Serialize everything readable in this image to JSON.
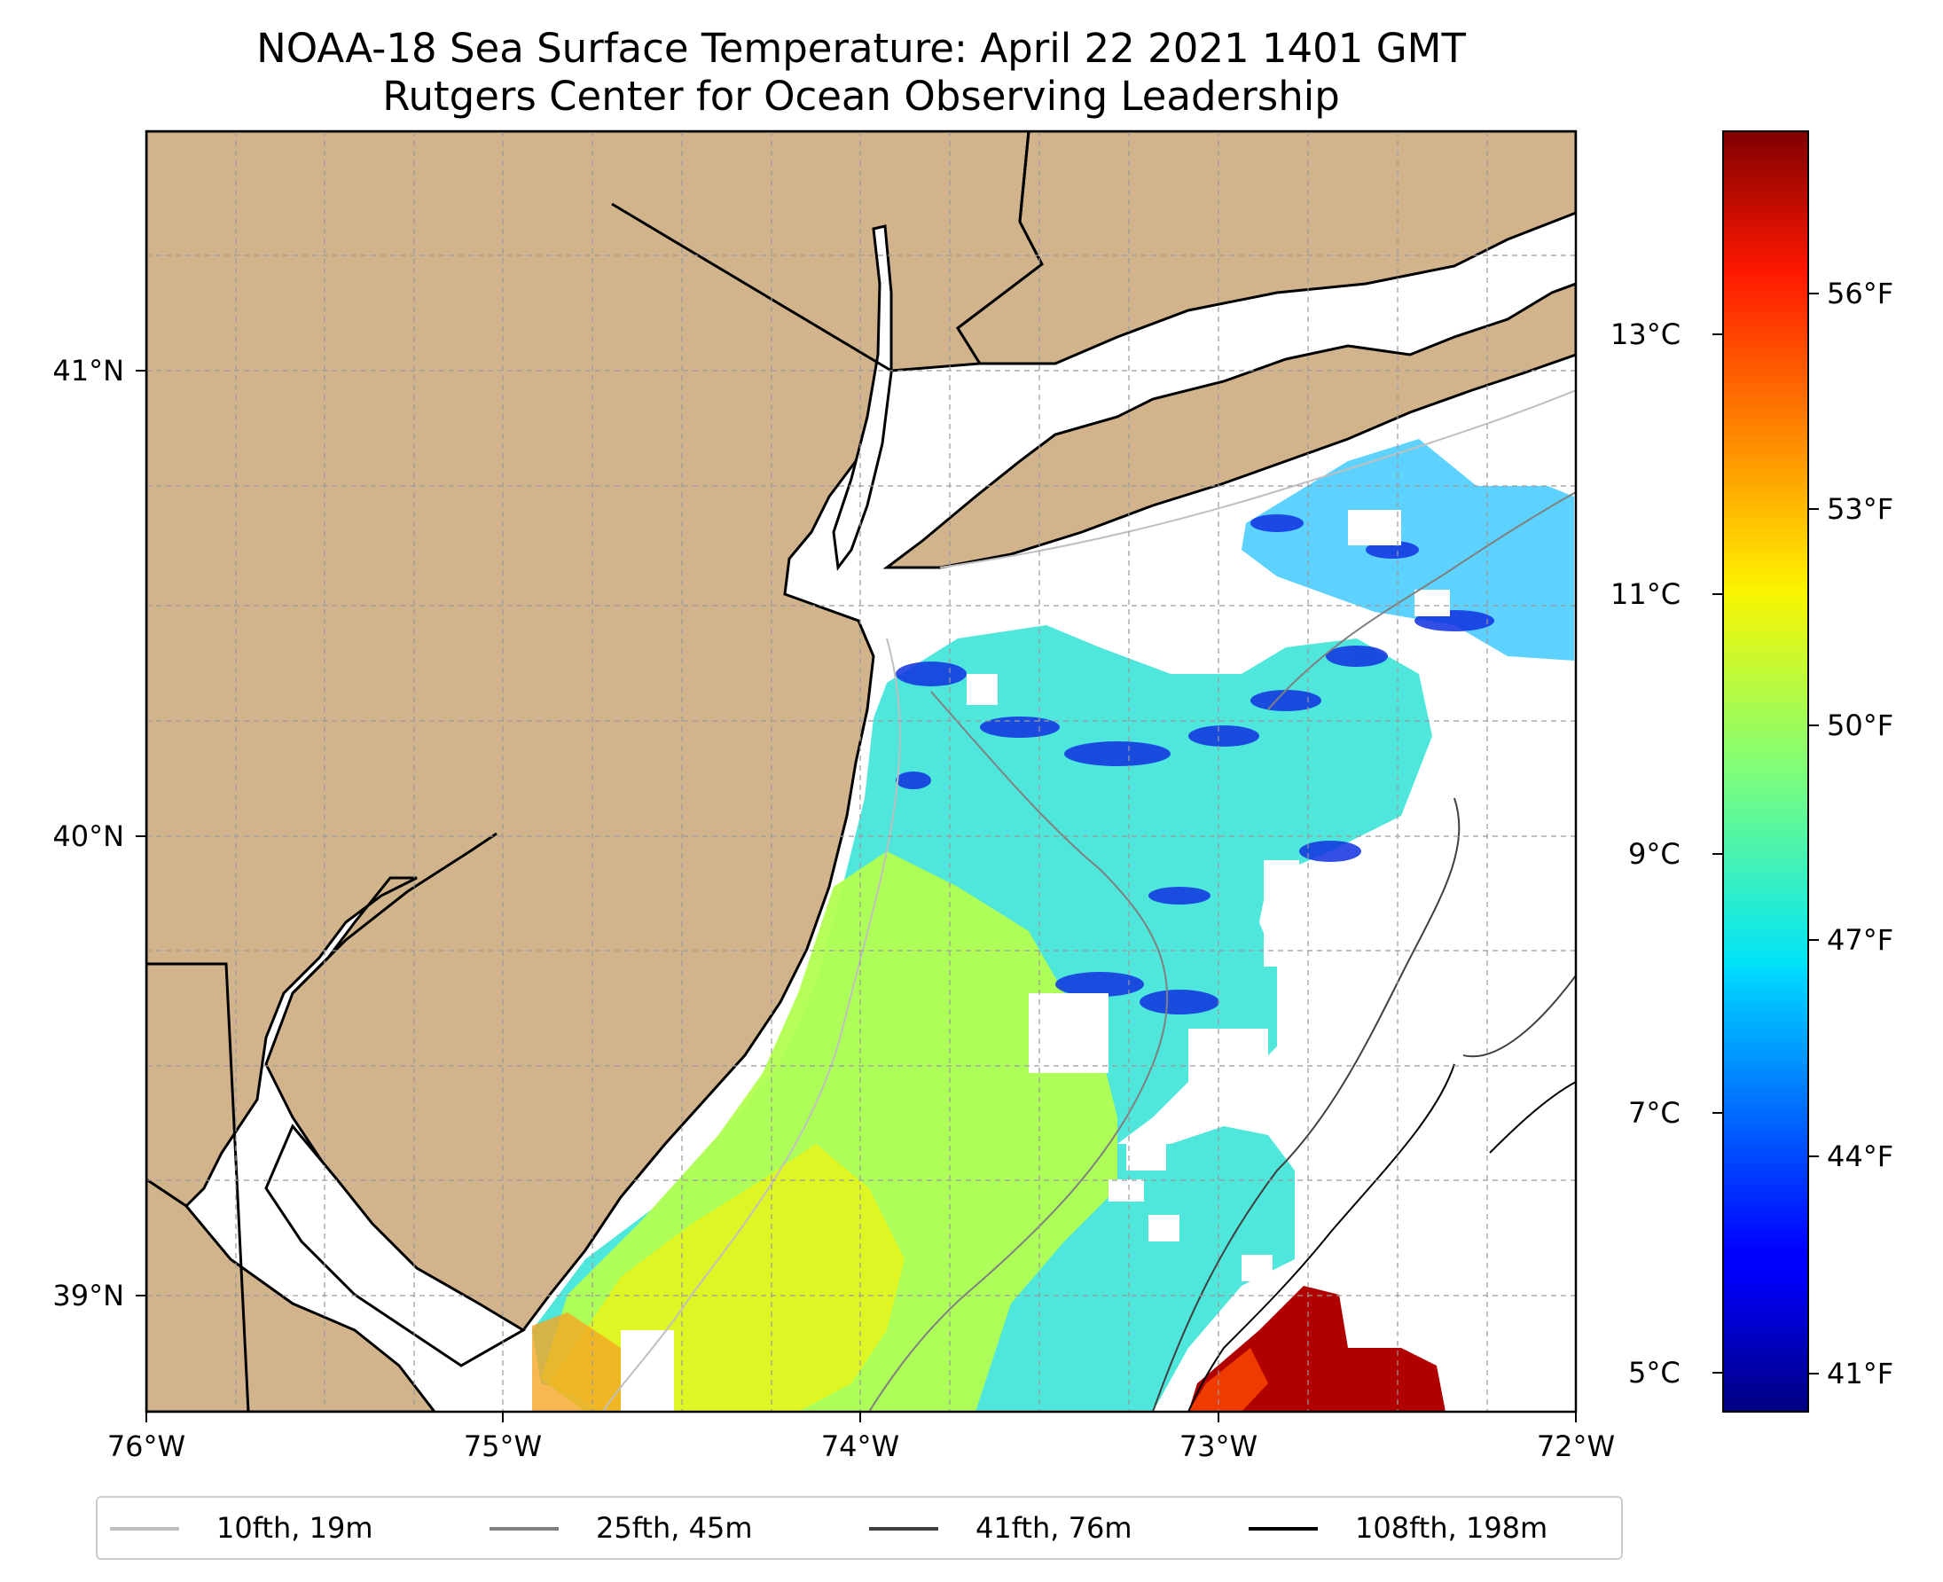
{
  "title": {
    "line1": "NOAA-18 Sea Surface Temperature: April 22 2021 1401 GMT",
    "line2": "Rutgers Center for Ocean Observing Leadership"
  },
  "map": {
    "lon_range": [
      -76,
      -72
    ],
    "lat_range": [
      38.73,
      41.52
    ],
    "land_color": "#d2b48c",
    "coast_color": "#000000",
    "grid": true,
    "x_ticks": [
      "76°W",
      "75°W",
      "74°W",
      "73°W",
      "72°W"
    ],
    "y_ticks": [
      "39°N",
      "40°N",
      "41°N"
    ]
  },
  "colorbar": {
    "colormap": "jet",
    "range_c": [
      4.7,
      14.8
    ],
    "celsius_ticks": [
      "5°C",
      "7°C",
      "9°C",
      "11°C",
      "13°C"
    ],
    "fahrenheit_ticks": [
      "41°F",
      "44°F",
      "47°F",
      "50°F",
      "53°F",
      "56°F"
    ]
  },
  "legend": {
    "items": [
      {
        "label": "10fth, 19m",
        "color": "#bfbfbf"
      },
      {
        "label": "25fth, 45m",
        "color": "#808080"
      },
      {
        "label": "41fth, 76m",
        "color": "#404040"
      },
      {
        "label": "108fth, 198m",
        "color": "#000000"
      }
    ]
  }
}
